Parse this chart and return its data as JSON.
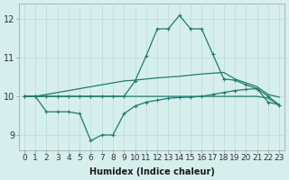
{
  "xlabel": "Humidex (Indice chaleur)",
  "x_values": [
    0,
    1,
    2,
    3,
    4,
    5,
    6,
    7,
    8,
    9,
    10,
    11,
    12,
    13,
    14,
    15,
    16,
    17,
    18,
    19,
    20,
    21,
    22,
    23
  ],
  "line_top": [
    10.0,
    10.0,
    10.05,
    10.1,
    10.15,
    10.2,
    10.25,
    10.3,
    10.35,
    10.4,
    10.42,
    10.45,
    10.48,
    10.5,
    10.52,
    10.55,
    10.58,
    10.6,
    10.62,
    10.45,
    10.35,
    10.25,
    10.05,
    9.98
  ],
  "line_mid": [
    10.0,
    10.0,
    10.0,
    10.0,
    10.0,
    10.0,
    10.0,
    10.0,
    10.0,
    10.0,
    10.0,
    10.0,
    10.0,
    10.0,
    10.0,
    10.0,
    10.0,
    10.0,
    10.0,
    10.0,
    10.0,
    10.0,
    9.95,
    9.78
  ],
  "line_peak": [
    10.0,
    10.0,
    10.0,
    10.0,
    10.0,
    10.0,
    10.0,
    10.0,
    10.0,
    10.0,
    10.4,
    11.05,
    11.75,
    11.75,
    12.1,
    11.75,
    11.75,
    11.1,
    10.45,
    10.42,
    10.3,
    10.2,
    10.0,
    9.78
  ],
  "line_low": [
    10.0,
    10.0,
    9.6,
    9.6,
    9.6,
    9.55,
    8.85,
    9.0,
    9.0,
    9.55,
    9.75,
    9.85,
    9.9,
    9.95,
    9.97,
    9.98,
    10.0,
    10.05,
    10.1,
    10.15,
    10.18,
    10.2,
    9.85,
    9.78
  ],
  "ylim": [
    8.6,
    12.4
  ],
  "yticks": [
    9,
    10,
    11,
    12
  ],
  "xticks": [
    0,
    1,
    2,
    3,
    4,
    5,
    6,
    7,
    8,
    9,
    10,
    11,
    12,
    13,
    14,
    15,
    16,
    17,
    18,
    19,
    20,
    21,
    22,
    23
  ],
  "line_color": "#1e7b6b",
  "bg_color": "#d6efed",
  "grid_color": "#b8dbd8",
  "xlabel_fontsize": 7,
  "tick_fontsize": 6.5
}
